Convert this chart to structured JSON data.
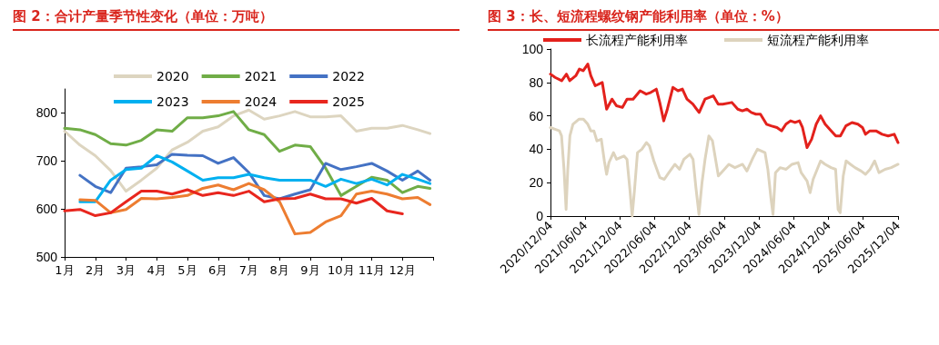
{
  "chart_data": [
    {
      "type": "line",
      "title": "图 2：合计产量季节性变化（单位：万吨）",
      "x": [
        1,
        1.5,
        2,
        2.5,
        3,
        3.5,
        4,
        4.5,
        5,
        5.5,
        6,
        6.5,
        7,
        7.5,
        8,
        8.5,
        9,
        9.5,
        10,
        10.5,
        11,
        11.5,
        12,
        12.5,
        12.9
      ],
      "series": [
        {
          "name": "2020",
          "color": "#ddd5c0",
          "values": [
            762,
            733,
            711,
            680,
            637,
            660,
            685,
            723,
            739,
            762,
            771,
            794,
            806,
            787,
            794,
            803,
            792,
            792,
            794,
            762,
            768,
            768,
            774,
            765,
            757
          ]
        },
        {
          "name": "2021",
          "color": "#70ad47",
          "values": [
            768,
            765,
            755,
            736,
            733,
            743,
            765,
            762,
            790,
            790,
            794,
            803,
            765,
            755,
            720,
            733,
            730,
            685,
            628,
            647,
            666,
            660,
            634,
            647,
            643
          ]
        },
        {
          "name": "2022",
          "color": "#4472c4",
          "values": [
            null,
            670,
            647,
            634,
            685,
            688,
            692,
            714,
            712,
            711,
            695,
            707,
            676,
            628,
            621,
            631,
            640,
            695,
            682,
            688,
            695,
            679,
            660,
            679,
            660
          ]
        },
        {
          "name": "2023",
          "color": "#00b0f0",
          "values": [
            null,
            615,
            615,
            660,
            682,
            685,
            711,
            698,
            679,
            660,
            665,
            665,
            672,
            665,
            660,
            660,
            660,
            647,
            662,
            653,
            662,
            650,
            672,
            662,
            653
          ]
        },
        {
          "name": "2024",
          "color": "#ed7d31",
          "values": [
            null,
            619,
            618,
            592,
            599,
            622,
            621,
            624,
            628,
            643,
            650,
            640,
            653,
            640,
            615,
            548,
            551,
            573,
            586,
            631,
            637,
            631,
            621,
            624,
            609
          ]
        },
        {
          "name": "2025",
          "color": "#e8261e",
          "values": [
            596,
            599,
            586,
            592,
            615,
            637,
            637,
            631,
            640,
            628,
            634,
            628,
            637,
            615,
            621,
            622,
            631,
            621,
            621,
            612,
            622,
            596,
            590,
            null,
            null
          ]
        }
      ],
      "xlim": [
        1,
        13
      ],
      "xticks": [
        {
          "value": 1,
          "label": "1月"
        },
        {
          "value": 2,
          "label": "2月"
        },
        {
          "value": 3,
          "label": "3月"
        },
        {
          "value": 4,
          "label": "4月"
        },
        {
          "value": 5,
          "label": "5月"
        },
        {
          "value": 6,
          "label": "6月"
        },
        {
          "value": 7,
          "label": "7月"
        },
        {
          "value": 8,
          "label": "8月"
        },
        {
          "value": 9,
          "label": "9月"
        },
        {
          "value": 10,
          "label": "10月"
        },
        {
          "value": 11,
          "label": "11月"
        },
        {
          "value": 12,
          "label": "12月"
        },
        {
          "value": 13,
          "label": null
        }
      ],
      "ylim": [
        500,
        850
      ],
      "yticks": [
        500,
        600,
        700,
        800
      ],
      "legend": "top",
      "grid": false,
      "marker": "none",
      "line_style": "solid"
    },
    {
      "type": "line",
      "title": "图 3：长、短流程螺纹钢产能利用率（单位：%）",
      "series": [
        {
          "name": "长流程产能利用率",
          "color": "#e3211c",
          "x": [
            "2020-12-04",
            "2020-12-28",
            "2021-02-01",
            "2021-02-26",
            "2021-03-15",
            "2021-04-16",
            "2021-05-05",
            "2021-05-25",
            "2021-06-18",
            "2021-07-04",
            "2021-07-27",
            "2021-09-02",
            "2021-09-25",
            "2021-10-23",
            "2021-11-16",
            "2021-12-17",
            "2022-01-10",
            "2022-02-11",
            "2022-03-20",
            "2022-04-21",
            "2022-05-15",
            "2022-06-13",
            "2022-07-01",
            "2022-07-22",
            "2022-08-10",
            "2022-09-08",
            "2022-10-05",
            "2022-10-28",
            "2022-11-21",
            "2022-12-22",
            "2023-01-24",
            "2023-02-24",
            "2023-03-18",
            "2023-04-08",
            "2023-05-04",
            "2023-05-28",
            "2023-07-15",
            "2023-08-15",
            "2023-09-08",
            "2023-10-02",
            "2023-10-25",
            "2023-11-18",
            "2023-12-12",
            "2024-01-13",
            "2024-02-06",
            "2024-03-08",
            "2024-04-01",
            "2024-04-24",
            "2024-05-18",
            "2024-06-11",
            "2024-07-04",
            "2024-07-20",
            "2024-08-13",
            "2024-09-06",
            "2024-09-30",
            "2024-10-23",
            "2024-11-16",
            "2024-12-18",
            "2025-01-11",
            "2025-02-04",
            "2025-03-05",
            "2025-04-06",
            "2025-05-07",
            "2025-05-31",
            "2025-06-16",
            "2025-07-09",
            "2025-08-10",
            "2025-09-11",
            "2025-10-13",
            "2025-11-14",
            "2025-12-04"
          ],
          "values": [
            85,
            83,
            81,
            85,
            81,
            84,
            88,
            87,
            91,
            84,
            78,
            80,
            64,
            70,
            66,
            65,
            70,
            70,
            75,
            73,
            74,
            76,
            68,
            57,
            64,
            77,
            75,
            76,
            70,
            67,
            62,
            70,
            71,
            72,
            67,
            67,
            68,
            64,
            63,
            64,
            62,
            61,
            61,
            55,
            54,
            53,
            51,
            55,
            57,
            56,
            57,
            53,
            41,
            46,
            55,
            60,
            55,
            51,
            48,
            48,
            54,
            56,
            55,
            53,
            49,
            51,
            51,
            49,
            48,
            49,
            44
          ]
        },
        {
          "name": "短流程产能利用率",
          "color": "#ddd3bd",
          "x": [
            "2020-12-04",
            "2020-12-28",
            "2021-01-20",
            "2021-01-31",
            "2021-02-13",
            "2021-02-24",
            "2021-03-05",
            "2021-03-16",
            "2021-04-01",
            "2021-05-02",
            "2021-05-26",
            "2021-06-18",
            "2021-07-04",
            "2021-07-20",
            "2021-08-05",
            "2021-08-28",
            "2021-09-13",
            "2021-09-25",
            "2021-10-07",
            "2021-10-31",
            "2021-11-16",
            "2021-12-25",
            "2022-01-10",
            "2022-01-26",
            "2022-02-06",
            "2022-02-18",
            "2022-03-06",
            "2022-03-29",
            "2022-04-22",
            "2022-05-08",
            "2022-05-31",
            "2022-07-02",
            "2022-07-25",
            "2022-08-18",
            "2022-09-19",
            "2022-10-13",
            "2022-11-05",
            "2022-12-07",
            "2022-12-23",
            "2023-01-07",
            "2023-01-23",
            "2023-02-08",
            "2023-02-24",
            "2023-03-16",
            "2023-04-04",
            "2023-05-05",
            "2023-05-29",
            "2023-06-29",
            "2023-07-31",
            "2023-09-09",
            "2023-10-02",
            "2023-11-03",
            "2023-11-26",
            "2024-01-05",
            "2024-01-20",
            "2024-02-05",
            "2024-02-16",
            "2024-02-29",
            "2024-03-24",
            "2024-04-25",
            "2024-05-26",
            "2024-06-27",
            "2024-07-13",
            "2024-08-13",
            "2024-08-29",
            "2024-09-14",
            "2024-10-23",
            "2024-11-16",
            "2024-12-17",
            "2025-01-10",
            "2025-01-23",
            "2025-02-03",
            "2025-02-19",
            "2025-03-06",
            "2025-03-29",
            "2025-04-22",
            "2025-05-24",
            "2025-06-16",
            "2025-07-10",
            "2025-08-03",
            "2025-08-26",
            "2025-09-27",
            "2025-10-29",
            "2025-12-04"
          ],
          "values": [
            53,
            52,
            51,
            48,
            28,
            4,
            28,
            48,
            55,
            58,
            58,
            55,
            51,
            51,
            45,
            46,
            33,
            25,
            32,
            38,
            34,
            36,
            34,
            15,
            0,
            15,
            38,
            40,
            44,
            42,
            33,
            23,
            22,
            26,
            31,
            28,
            34,
            37,
            34,
            17,
            1,
            20,
            34,
            48,
            45,
            24,
            27,
            31,
            29,
            31,
            27,
            35,
            40,
            38,
            28,
            11,
            1,
            26,
            29,
            28,
            31,
            32,
            26,
            21,
            14,
            22,
            33,
            31,
            29,
            28,
            4,
            2,
            24,
            33,
            31,
            29,
            27,
            25,
            28,
            33,
            26,
            28,
            29,
            31
          ]
        }
      ],
      "xlim": [
        "2020-12-04",
        "2025-12-04"
      ],
      "xticks": [
        {
          "value": "2020-12-04",
          "label": "2020/12/04"
        },
        {
          "value": "2021-06-04",
          "label": "2021/06/04"
        },
        {
          "value": "2021-12-04",
          "label": "2021/12/04"
        },
        {
          "value": "2022-06-04",
          "label": "2022/06/04"
        },
        {
          "value": "2022-12-04",
          "label": "2022/12/04"
        },
        {
          "value": "2023-06-04",
          "label": "2023/06/04"
        },
        {
          "value": "2023-12-04",
          "label": "2023/12/04"
        },
        {
          "value": "2024-06-04",
          "label": "2024/06/04"
        },
        {
          "value": "2024-12-04",
          "label": "2024/12/04"
        },
        {
          "value": "2025-06-04",
          "label": "2025/06/04"
        },
        {
          "value": "2025-12-04",
          "label": "2025/12/04"
        }
      ],
      "ylim": [
        0,
        100
      ],
      "yticks": [
        0,
        20,
        40,
        60,
        80,
        100
      ],
      "legend": "top",
      "grid": false,
      "marker": "none",
      "line_style": "solid"
    }
  ]
}
